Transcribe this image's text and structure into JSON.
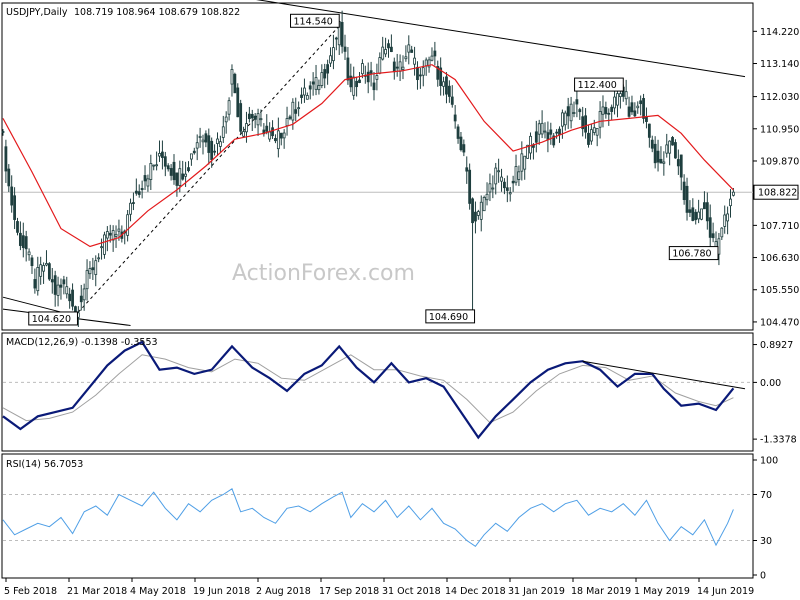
{
  "header": {
    "symbol": "USDJPY,Daily",
    "ohlc": "108.719 108.964 108.679 108.822"
  },
  "watermark": "ActionForex.com",
  "colors": {
    "candles": "#1f3f3f",
    "ma": "#e31a1c",
    "trendline": "#000000",
    "macd": "#0a1a78",
    "signal": "#a0a0a0",
    "rsi": "#4f9fe6",
    "grid": "#bdbdbd",
    "pricebox": "#ffffff"
  },
  "chart_data": [
    {
      "type": "candlestick",
      "title": "USDJPY,Daily 108.719 108.964 108.679 108.822",
      "x_dates": [
        "5 Feb 2018",
        "21 Mar 2018",
        "4 May 2018",
        "19 Jun 2018",
        "2 Aug 2018",
        "17 Sep 2018",
        "31 Oct 2018",
        "14 Dec 2018",
        "31 Jan 2019",
        "18 Mar 2019",
        "1 May 2019",
        "14 Jun 2019"
      ],
      "y_ticks": [
        104.47,
        105.55,
        106.63,
        107.71,
        108.79,
        109.87,
        110.95,
        112.03,
        113.14,
        114.22
      ],
      "ylim": [
        104.3,
        114.6
      ],
      "last_price": 108.822,
      "close_path": [
        {
          "t": 0,
          "v": 110.6
        },
        {
          "t": 2,
          "v": 109.0
        },
        {
          "t": 5,
          "v": 107.4
        },
        {
          "t": 8,
          "v": 106.9
        },
        {
          "t": 11,
          "v": 105.8
        },
        {
          "t": 14,
          "v": 106.4
        },
        {
          "t": 18,
          "v": 105.5
        },
        {
          "t": 22,
          "v": 105.7
        },
        {
          "t": 25,
          "v": 104.8
        },
        {
          "t": 29,
          "v": 105.9
        },
        {
          "t": 33,
          "v": 106.8
        },
        {
          "t": 37,
          "v": 107.4
        },
        {
          "t": 41,
          "v": 107.3
        },
        {
          "t": 45,
          "v": 108.6
        },
        {
          "t": 50,
          "v": 109.5
        },
        {
          "t": 55,
          "v": 110.0
        },
        {
          "t": 60,
          "v": 109.3
        },
        {
          "t": 64,
          "v": 109.8
        },
        {
          "t": 68,
          "v": 110.8
        },
        {
          "t": 72,
          "v": 110.2
        },
        {
          "t": 76,
          "v": 110.9
        },
        {
          "t": 79,
          "v": 112.8
        },
        {
          "t": 82,
          "v": 111.0
        },
        {
          "t": 86,
          "v": 111.4
        },
        {
          "t": 90,
          "v": 111.0
        },
        {
          "t": 94,
          "v": 110.4
        },
        {
          "t": 98,
          "v": 111.3
        },
        {
          "t": 103,
          "v": 112.0
        },
        {
          "t": 108,
          "v": 112.4
        },
        {
          "t": 112,
          "v": 113.1
        },
        {
          "t": 116,
          "v": 114.3
        },
        {
          "t": 120,
          "v": 112.2
        },
        {
          "t": 124,
          "v": 113.0
        },
        {
          "t": 128,
          "v": 112.4
        },
        {
          "t": 132,
          "v": 113.9
        },
        {
          "t": 136,
          "v": 112.8
        },
        {
          "t": 140,
          "v": 113.6
        },
        {
          "t": 144,
          "v": 112.6
        },
        {
          "t": 148,
          "v": 113.4
        },
        {
          "t": 152,
          "v": 112.4
        },
        {
          "t": 156,
          "v": 111.2
        },
        {
          "t": 160,
          "v": 109.5
        },
        {
          "t": 162,
          "v": 107.9
        },
        {
          "t": 166,
          "v": 108.5
        },
        {
          "t": 170,
          "v": 109.5
        },
        {
          "t": 174,
          "v": 108.8
        },
        {
          "t": 178,
          "v": 109.6
        },
        {
          "t": 182,
          "v": 110.5
        },
        {
          "t": 186,
          "v": 111.0
        },
        {
          "t": 190,
          "v": 110.6
        },
        {
          "t": 194,
          "v": 111.4
        },
        {
          "t": 198,
          "v": 111.8
        },
        {
          "t": 202,
          "v": 110.5
        },
        {
          "t": 206,
          "v": 111.3
        },
        {
          "t": 210,
          "v": 111.7
        },
        {
          "t": 214,
          "v": 112.2
        },
        {
          "t": 217,
          "v": 111.3
        },
        {
          "t": 220,
          "v": 111.8
        },
        {
          "t": 224,
          "v": 110.3
        },
        {
          "t": 227,
          "v": 109.6
        },
        {
          "t": 230,
          "v": 110.5
        },
        {
          "t": 233,
          "v": 109.8
        },
        {
          "t": 236,
          "v": 108.2
        },
        {
          "t": 239,
          "v": 107.8
        },
        {
          "t": 242,
          "v": 108.5
        },
        {
          "t": 244,
          "v": 107.4
        },
        {
          "t": 246,
          "v": 106.9
        },
        {
          "t": 249,
          "v": 107.9
        },
        {
          "t": 252,
          "v": 108.8
        }
      ],
      "moving_average": [
        {
          "t": 0,
          "v": 111.3
        },
        {
          "t": 10,
          "v": 109.5
        },
        {
          "t": 20,
          "v": 107.6
        },
        {
          "t": 30,
          "v": 107.0
        },
        {
          "t": 40,
          "v": 107.3
        },
        {
          "t": 50,
          "v": 108.2
        },
        {
          "t": 60,
          "v": 108.9
        },
        {
          "t": 70,
          "v": 109.7
        },
        {
          "t": 80,
          "v": 110.6
        },
        {
          "t": 90,
          "v": 110.8
        },
        {
          "t": 100,
          "v": 111.1
        },
        {
          "t": 110,
          "v": 111.8
        },
        {
          "t": 118,
          "v": 112.6
        },
        {
          "t": 128,
          "v": 112.8
        },
        {
          "t": 138,
          "v": 112.9
        },
        {
          "t": 148,
          "v": 113.1
        },
        {
          "t": 156,
          "v": 112.6
        },
        {
          "t": 166,
          "v": 111.2
        },
        {
          "t": 176,
          "v": 110.2
        },
        {
          "t": 186,
          "v": 110.5
        },
        {
          "t": 196,
          "v": 110.9
        },
        {
          "t": 206,
          "v": 111.2
        },
        {
          "t": 216,
          "v": 111.3
        },
        {
          "t": 226,
          "v": 111.4
        },
        {
          "t": 234,
          "v": 110.8
        },
        {
          "t": 242,
          "v": 109.9
        },
        {
          "t": 252,
          "v": 108.9
        }
      ],
      "trendlines": [
        {
          "from": {
            "t": 0,
            "v": 105.3
          },
          "to": {
            "t": 24,
            "v": 104.7
          }
        },
        {
          "from": {
            "t": 0,
            "v": 104.9
          },
          "to": {
            "t": 44,
            "v": 104.35
          }
        },
        {
          "from": {
            "t": 26,
            "v": 104.8
          },
          "to": {
            "t": 116,
            "v": 114.4
          },
          "style": "dashed"
        },
        {
          "from": {
            "t": 80,
            "v": 115.4
          },
          "to": {
            "t": 256,
            "v": 112.7
          }
        }
      ],
      "annotations": [
        {
          "label": "114.540",
          "t": 116,
          "v": 114.54
        },
        {
          "label": "104.620",
          "t": 25,
          "v": 104.62
        },
        {
          "label": "104.690",
          "t": 162,
          "v": 104.69
        },
        {
          "label": "112.400",
          "t": 214,
          "v": 112.4
        },
        {
          "label": "106.780",
          "t": 246,
          "v": 106.78
        }
      ]
    },
    {
      "type": "line",
      "title": "MACD(12,26,9) -0.1398 -0.3553",
      "y_ticks": [
        0.8927,
        0.0,
        -1.3378
      ],
      "ylim": [
        -1.5,
        1.0
      ],
      "series": [
        {
          "name": "MACD",
          "points": [
            {
              "t": 0,
              "v": -0.8
            },
            {
              "t": 6,
              "v": -1.1
            },
            {
              "t": 12,
              "v": -0.8
            },
            {
              "t": 18,
              "v": -0.7
            },
            {
              "t": 24,
              "v": -0.6
            },
            {
              "t": 30,
              "v": -0.1
            },
            {
              "t": 36,
              "v": 0.4
            },
            {
              "t": 42,
              "v": 0.75
            },
            {
              "t": 48,
              "v": 0.95
            },
            {
              "t": 54,
              "v": 0.3
            },
            {
              "t": 60,
              "v": 0.35
            },
            {
              "t": 66,
              "v": 0.2
            },
            {
              "t": 72,
              "v": 0.3
            },
            {
              "t": 79,
              "v": 0.85
            },
            {
              "t": 86,
              "v": 0.35
            },
            {
              "t": 92,
              "v": 0.1
            },
            {
              "t": 98,
              "v": -0.2
            },
            {
              "t": 104,
              "v": 0.2
            },
            {
              "t": 110,
              "v": 0.4
            },
            {
              "t": 116,
              "v": 0.85
            },
            {
              "t": 122,
              "v": 0.35
            },
            {
              "t": 128,
              "v": 0.0
            },
            {
              "t": 134,
              "v": 0.45
            },
            {
              "t": 140,
              "v": 0.0
            },
            {
              "t": 146,
              "v": 0.1
            },
            {
              "t": 152,
              "v": -0.1
            },
            {
              "t": 158,
              "v": -0.7
            },
            {
              "t": 164,
              "v": -1.3
            },
            {
              "t": 170,
              "v": -0.8
            },
            {
              "t": 176,
              "v": -0.4
            },
            {
              "t": 182,
              "v": 0.0
            },
            {
              "t": 188,
              "v": 0.3
            },
            {
              "t": 194,
              "v": 0.45
            },
            {
              "t": 200,
              "v": 0.5
            },
            {
              "t": 206,
              "v": 0.3
            },
            {
              "t": 212,
              "v": -0.1
            },
            {
              "t": 218,
              "v": 0.2
            },
            {
              "t": 224,
              "v": 0.2
            },
            {
              "t": 228,
              "v": -0.15
            },
            {
              "t": 234,
              "v": -0.55
            },
            {
              "t": 240,
              "v": -0.5
            },
            {
              "t": 246,
              "v": -0.65
            },
            {
              "t": 252,
              "v": -0.14
            }
          ]
        },
        {
          "name": "Signal",
          "points": [
            {
              "t": 0,
              "v": -0.6
            },
            {
              "t": 8,
              "v": -0.9
            },
            {
              "t": 16,
              "v": -0.85
            },
            {
              "t": 24,
              "v": -0.7
            },
            {
              "t": 32,
              "v": -0.3
            },
            {
              "t": 40,
              "v": 0.2
            },
            {
              "t": 48,
              "v": 0.65
            },
            {
              "t": 56,
              "v": 0.55
            },
            {
              "t": 64,
              "v": 0.35
            },
            {
              "t": 72,
              "v": 0.25
            },
            {
              "t": 80,
              "v": 0.55
            },
            {
              "t": 88,
              "v": 0.45
            },
            {
              "t": 96,
              "v": 0.1
            },
            {
              "t": 104,
              "v": 0.05
            },
            {
              "t": 112,
              "v": 0.35
            },
            {
              "t": 120,
              "v": 0.65
            },
            {
              "t": 128,
              "v": 0.3
            },
            {
              "t": 136,
              "v": 0.3
            },
            {
              "t": 144,
              "v": 0.15
            },
            {
              "t": 152,
              "v": 0.05
            },
            {
              "t": 160,
              "v": -0.4
            },
            {
              "t": 168,
              "v": -0.95
            },
            {
              "t": 176,
              "v": -0.7
            },
            {
              "t": 184,
              "v": -0.2
            },
            {
              "t": 192,
              "v": 0.2
            },
            {
              "t": 200,
              "v": 0.4
            },
            {
              "t": 208,
              "v": 0.35
            },
            {
              "t": 216,
              "v": 0.05
            },
            {
              "t": 224,
              "v": 0.15
            },
            {
              "t": 232,
              "v": -0.25
            },
            {
              "t": 240,
              "v": -0.45
            },
            {
              "t": 246,
              "v": -0.55
            },
            {
              "t": 252,
              "v": -0.36
            }
          ]
        }
      ],
      "trendline": {
        "from": {
          "t": 200,
          "v": 0.5
        },
        "to": {
          "t": 256,
          "v": -0.15
        }
      }
    },
    {
      "type": "line",
      "title": "RSI(14) 56.7053",
      "y_ticks": [
        100,
        70,
        30,
        0
      ],
      "ylim": [
        0,
        100
      ],
      "series": [
        {
          "name": "RSI",
          "points": [
            {
              "t": 0,
              "v": 48
            },
            {
              "t": 4,
              "v": 35
            },
            {
              "t": 8,
              "v": 40
            },
            {
              "t": 12,
              "v": 45
            },
            {
              "t": 16,
              "v": 42
            },
            {
              "t": 20,
              "v": 50
            },
            {
              "t": 24,
              "v": 36
            },
            {
              "t": 28,
              "v": 55
            },
            {
              "t": 32,
              "v": 60
            },
            {
              "t": 36,
              "v": 52
            },
            {
              "t": 40,
              "v": 70
            },
            {
              "t": 44,
              "v": 65
            },
            {
              "t": 48,
              "v": 60
            },
            {
              "t": 52,
              "v": 72
            },
            {
              "t": 56,
              "v": 58
            },
            {
              "t": 60,
              "v": 48
            },
            {
              "t": 64,
              "v": 62
            },
            {
              "t": 68,
              "v": 55
            },
            {
              "t": 72,
              "v": 65
            },
            {
              "t": 76,
              "v": 70
            },
            {
              "t": 79,
              "v": 75
            },
            {
              "t": 82,
              "v": 55
            },
            {
              "t": 86,
              "v": 58
            },
            {
              "t": 90,
              "v": 50
            },
            {
              "t": 94,
              "v": 45
            },
            {
              "t": 98,
              "v": 58
            },
            {
              "t": 102,
              "v": 60
            },
            {
              "t": 106,
              "v": 55
            },
            {
              "t": 110,
              "v": 62
            },
            {
              "t": 114,
              "v": 68
            },
            {
              "t": 117,
              "v": 72
            },
            {
              "t": 120,
              "v": 50
            },
            {
              "t": 124,
              "v": 62
            },
            {
              "t": 128,
              "v": 55
            },
            {
              "t": 132,
              "v": 65
            },
            {
              "t": 136,
              "v": 50
            },
            {
              "t": 140,
              "v": 60
            },
            {
              "t": 144,
              "v": 48
            },
            {
              "t": 148,
              "v": 58
            },
            {
              "t": 152,
              "v": 45
            },
            {
              "t": 156,
              "v": 40
            },
            {
              "t": 160,
              "v": 30
            },
            {
              "t": 163,
              "v": 25
            },
            {
              "t": 166,
              "v": 35
            },
            {
              "t": 170,
              "v": 45
            },
            {
              "t": 174,
              "v": 38
            },
            {
              "t": 178,
              "v": 50
            },
            {
              "t": 182,
              "v": 58
            },
            {
              "t": 186,
              "v": 62
            },
            {
              "t": 190,
              "v": 55
            },
            {
              "t": 194,
              "v": 62
            },
            {
              "t": 198,
              "v": 65
            },
            {
              "t": 202,
              "v": 52
            },
            {
              "t": 206,
              "v": 58
            },
            {
              "t": 210,
              "v": 55
            },
            {
              "t": 214,
              "v": 62
            },
            {
              "t": 218,
              "v": 52
            },
            {
              "t": 222,
              "v": 65
            },
            {
              "t": 226,
              "v": 45
            },
            {
              "t": 230,
              "v": 30
            },
            {
              "t": 234,
              "v": 42
            },
            {
              "t": 238,
              "v": 35
            },
            {
              "t": 242,
              "v": 48
            },
            {
              "t": 246,
              "v": 26
            },
            {
              "t": 250,
              "v": 45
            },
            {
              "t": 252,
              "v": 57
            }
          ]
        }
      ]
    }
  ]
}
